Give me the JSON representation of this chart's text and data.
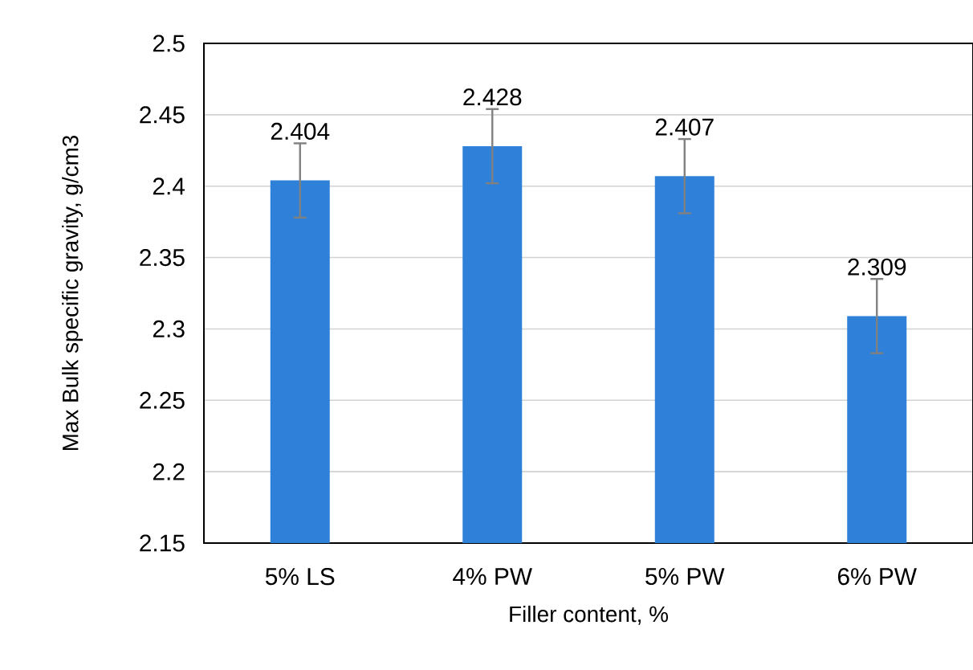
{
  "chart_data": {
    "type": "bar",
    "xlabel": "Filler content, %",
    "ylabel": "Max Bulk specific gravity, g/cm3",
    "categories": [
      "5% LS",
      "4% PW",
      "5% PW",
      "6% PW"
    ],
    "values": [
      2.404,
      2.428,
      2.407,
      2.309
    ],
    "errors": [
      0.026,
      0.026,
      0.026,
      0.026
    ],
    "value_labels": [
      "2.404",
      "2.428",
      "2.407",
      "2.309"
    ],
    "color": "#2f80d8",
    "ylim": [
      2.15,
      2.5
    ],
    "yticks": [
      2.15,
      2.2,
      2.25,
      2.3,
      2.35,
      2.4,
      2.45,
      2.5
    ],
    "grid": "y"
  }
}
